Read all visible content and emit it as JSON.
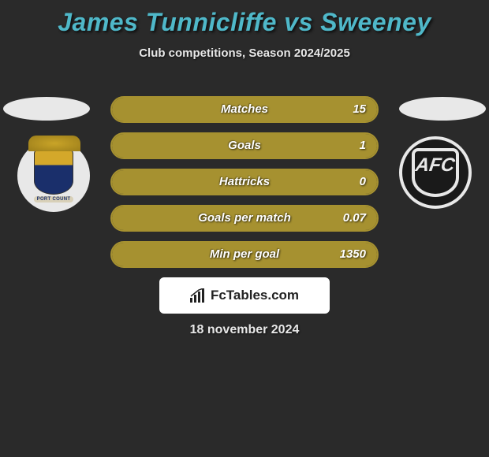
{
  "header": {
    "title": "James Tunnicliffe vs Sweeney",
    "subtitle": "Club competitions, Season 2024/2025",
    "title_color": "#4fb8c9",
    "title_fontsize": 32
  },
  "teams": {
    "left": {
      "name": "Stockport County",
      "ribbon_text": "PORT COUNT",
      "badge_bg": "#e8e8e8"
    },
    "right": {
      "name": "AFC",
      "initials": "AFC",
      "badge_bg": "#1a1a1a"
    }
  },
  "stats": {
    "bar_border_color": "#a69130",
    "fill_color": "#a69130",
    "empty_color": "transparent",
    "rows": [
      {
        "label": "Matches",
        "value": "15",
        "fill_pct": 100
      },
      {
        "label": "Goals",
        "value": "1",
        "fill_pct": 100
      },
      {
        "label": "Hattricks",
        "value": "0",
        "fill_pct": 100
      },
      {
        "label": "Goals per match",
        "value": "0.07",
        "fill_pct": 100
      },
      {
        "label": "Min per goal",
        "value": "1350",
        "fill_pct": 100
      }
    ]
  },
  "footer": {
    "brand_text": "FcTables.com",
    "date": "18 november 2024"
  },
  "colors": {
    "background": "#2a2a2a",
    "text": "#e8e8e8",
    "olive": "#a69130"
  }
}
